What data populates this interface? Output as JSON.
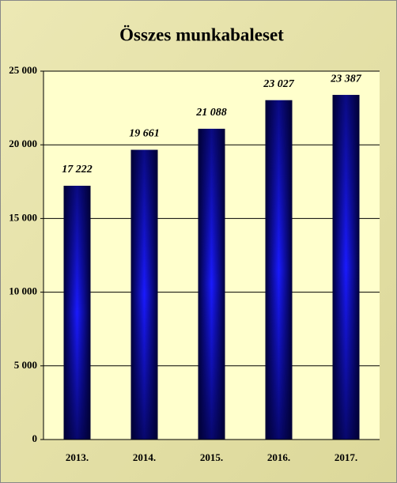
{
  "chart_data": {
    "type": "bar",
    "title": "Összes munkabaleset",
    "categories": [
      "2013.",
      "2014.",
      "2015.",
      "2016.",
      "2017."
    ],
    "values": [
      17222,
      19661,
      21088,
      23027,
      23387
    ],
    "value_labels": [
      "17 222",
      "19 661",
      "21 088",
      "23 027",
      "23 387"
    ],
    "color": "#1a1aff",
    "ylim": [
      0,
      25000
    ],
    "yticks": [
      0,
      {
        "value": 5000,
        "label": "5 000"
      },
      {
        "value": 10000,
        "label": "10 000"
      },
      {
        "value": 15000,
        "label": "15 000"
      },
      {
        "value": 20000,
        "label": "20 000"
      },
      {
        "value": 25000,
        "label": "25 000"
      }
    ],
    "grid": true
  }
}
